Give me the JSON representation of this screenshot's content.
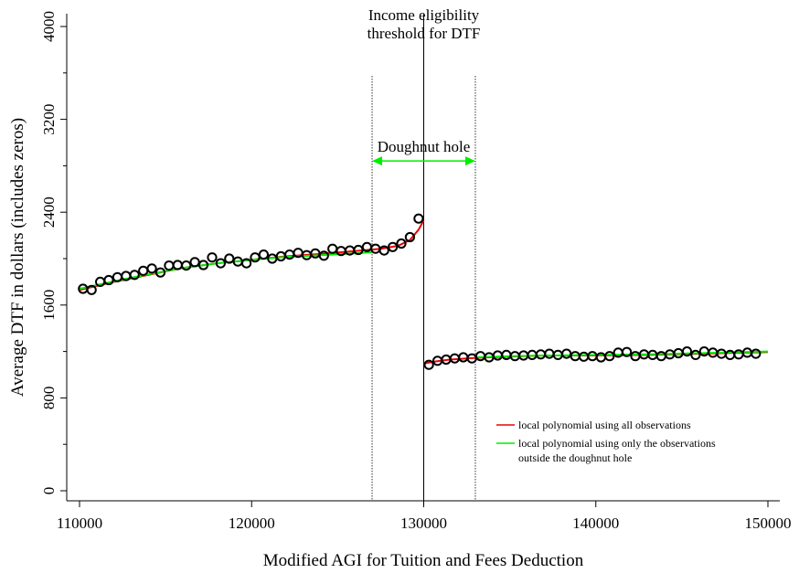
{
  "chart_data": {
    "type": "scatter",
    "title": "",
    "xlabel": "Modified AGI for Tuition and Fees Deduction",
    "ylabel": "Average DTF in dollars (includes zeros)",
    "xlim": [
      110000,
      150000
    ],
    "ylim": [
      0,
      4000
    ],
    "x_ticks": [
      110000,
      120000,
      130000,
      140000,
      150000
    ],
    "y_ticks": [
      0,
      800,
      1600,
      2400,
      3200,
      4000
    ],
    "x_tick_labels": [
      "110000",
      "120000",
      "130000",
      "140000",
      "150000"
    ],
    "y_tick_labels": [
      "0",
      "800",
      "1600",
      "2400",
      "3200",
      "4000"
    ],
    "grid": false,
    "threshold": {
      "x": 130000,
      "label_line1": "Income eligibility",
      "label_line2": "threshold for DTF"
    },
    "doughnut_hole": {
      "x_min": 127000,
      "x_max": 133000,
      "y_arrow": 2700,
      "label": "Doughnut hole",
      "arrow_color": "#00ee00"
    },
    "points": [
      {
        "x": 110200,
        "y": 1740
      },
      {
        "x": 110700,
        "y": 1730
      },
      {
        "x": 111200,
        "y": 1800
      },
      {
        "x": 111700,
        "y": 1815
      },
      {
        "x": 112200,
        "y": 1840
      },
      {
        "x": 112700,
        "y": 1850
      },
      {
        "x": 113200,
        "y": 1860
      },
      {
        "x": 113700,
        "y": 1895
      },
      {
        "x": 114200,
        "y": 1915
      },
      {
        "x": 114700,
        "y": 1880
      },
      {
        "x": 115200,
        "y": 1940
      },
      {
        "x": 115700,
        "y": 1945
      },
      {
        "x": 116200,
        "y": 1940
      },
      {
        "x": 116700,
        "y": 1970
      },
      {
        "x": 117200,
        "y": 1945
      },
      {
        "x": 117700,
        "y": 2010
      },
      {
        "x": 118200,
        "y": 1960
      },
      {
        "x": 118700,
        "y": 2000
      },
      {
        "x": 119200,
        "y": 1975
      },
      {
        "x": 119700,
        "y": 1960
      },
      {
        "x": 120200,
        "y": 2010
      },
      {
        "x": 120700,
        "y": 2035
      },
      {
        "x": 121200,
        "y": 2000
      },
      {
        "x": 121700,
        "y": 2020
      },
      {
        "x": 122200,
        "y": 2035
      },
      {
        "x": 122700,
        "y": 2050
      },
      {
        "x": 123200,
        "y": 2030
      },
      {
        "x": 123700,
        "y": 2045
      },
      {
        "x": 124200,
        "y": 2025
      },
      {
        "x": 124700,
        "y": 2085
      },
      {
        "x": 125200,
        "y": 2065
      },
      {
        "x": 125700,
        "y": 2070
      },
      {
        "x": 126200,
        "y": 2075
      },
      {
        "x": 126700,
        "y": 2100
      },
      {
        "x": 127200,
        "y": 2085
      },
      {
        "x": 127700,
        "y": 2070
      },
      {
        "x": 128200,
        "y": 2100
      },
      {
        "x": 128700,
        "y": 2130
      },
      {
        "x": 129200,
        "y": 2185
      },
      {
        "x": 129700,
        "y": 2345
      },
      {
        "x": 130300,
        "y": 1085
      },
      {
        "x": 130800,
        "y": 1120
      },
      {
        "x": 131300,
        "y": 1130
      },
      {
        "x": 131800,
        "y": 1140
      },
      {
        "x": 132300,
        "y": 1150
      },
      {
        "x": 132800,
        "y": 1140
      },
      {
        "x": 133300,
        "y": 1160
      },
      {
        "x": 133800,
        "y": 1150
      },
      {
        "x": 134300,
        "y": 1165
      },
      {
        "x": 134800,
        "y": 1170
      },
      {
        "x": 135300,
        "y": 1160
      },
      {
        "x": 135800,
        "y": 1165
      },
      {
        "x": 136300,
        "y": 1170
      },
      {
        "x": 136800,
        "y": 1175
      },
      {
        "x": 137300,
        "y": 1180
      },
      {
        "x": 137800,
        "y": 1170
      },
      {
        "x": 138300,
        "y": 1180
      },
      {
        "x": 138800,
        "y": 1160
      },
      {
        "x": 139300,
        "y": 1155
      },
      {
        "x": 139800,
        "y": 1160
      },
      {
        "x": 140300,
        "y": 1150
      },
      {
        "x": 140800,
        "y": 1160
      },
      {
        "x": 141300,
        "y": 1190
      },
      {
        "x": 141800,
        "y": 1195
      },
      {
        "x": 142300,
        "y": 1160
      },
      {
        "x": 142800,
        "y": 1175
      },
      {
        "x": 143300,
        "y": 1170
      },
      {
        "x": 143800,
        "y": 1160
      },
      {
        "x": 144300,
        "y": 1175
      },
      {
        "x": 144800,
        "y": 1185
      },
      {
        "x": 145300,
        "y": 1200
      },
      {
        "x": 145800,
        "y": 1170
      },
      {
        "x": 146300,
        "y": 1200
      },
      {
        "x": 146800,
        "y": 1190
      },
      {
        "x": 147300,
        "y": 1180
      },
      {
        "x": 147800,
        "y": 1170
      },
      {
        "x": 148300,
        "y": 1175
      },
      {
        "x": 148800,
        "y": 1190
      },
      {
        "x": 149300,
        "y": 1180
      }
    ],
    "series": [
      {
        "name": "local polynomial using all observations",
        "color": "#ee0000",
        "segments": [
          [
            [
              110000,
              1730
            ],
            [
              112000,
              1800
            ],
            [
              114000,
              1860
            ],
            [
              116000,
              1920
            ],
            [
              118000,
              1960
            ],
            [
              120000,
              1990
            ],
            [
              122000,
              2020
            ],
            [
              124000,
              2040
            ],
            [
              126000,
              2065
            ],
            [
              127500,
              2085
            ],
            [
              128500,
              2110
            ],
            [
              129200,
              2160
            ],
            [
              129700,
              2250
            ],
            [
              130000,
              2330
            ]
          ],
          [
            [
              130000,
              1095
            ],
            [
              130500,
              1110
            ],
            [
              131500,
              1130
            ],
            [
              133000,
              1145
            ],
            [
              135000,
              1155
            ],
            [
              137000,
              1165
            ],
            [
              140000,
              1165
            ],
            [
              143000,
              1170
            ],
            [
              146000,
              1180
            ],
            [
              150000,
              1195
            ]
          ]
        ]
      },
      {
        "name": "local polynomial using only the observations outside the doughnut hole",
        "name_line1": "local polynomial using only the observations",
        "name_line2": "outside the doughnut hole",
        "color": "#00ee00",
        "segments": [
          [
            [
              110000,
              1740
            ],
            [
              112000,
              1805
            ],
            [
              114000,
              1865
            ],
            [
              116000,
              1920
            ],
            [
              118000,
              1960
            ],
            [
              120000,
              1990
            ],
            [
              122000,
              2015
            ],
            [
              124000,
              2030
            ],
            [
              126000,
              2045
            ],
            [
              127000,
              2055
            ]
          ],
          [
            [
              133000,
              1150
            ],
            [
              135000,
              1160
            ],
            [
              137000,
              1165
            ],
            [
              140000,
              1170
            ],
            [
              143000,
              1175
            ],
            [
              146000,
              1185
            ],
            [
              150000,
              1200
            ]
          ]
        ]
      }
    ],
    "legend_position": "bottom-right"
  }
}
